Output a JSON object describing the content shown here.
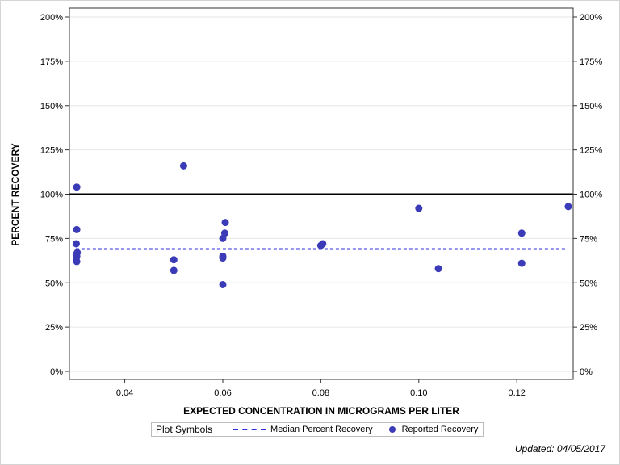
{
  "chart_data": {
    "type": "scatter",
    "xlabel": "EXPECTED CONCENTRATION IN MICROGRAMS PER LITER",
    "ylabel": "PERCENT RECOVERY",
    "xlim": [
      0.0287,
      0.1315
    ],
    "ylim": [
      0,
      200
    ],
    "x_ticks": [
      0.04,
      0.06,
      0.08,
      0.1,
      0.12
    ],
    "x_tick_labels": [
      "0.04",
      "0.06",
      "0.08",
      "0.10",
      "0.12"
    ],
    "y_ticks": [
      0,
      25,
      50,
      75,
      100,
      125,
      150,
      175,
      200
    ],
    "y_tick_labels": [
      "0%",
      "25%",
      "50%",
      "75%",
      "100%",
      "125%",
      "150%",
      "175%",
      "200%"
    ],
    "grid": true,
    "legend_position": "bottom",
    "reference_line": {
      "y": 100,
      "color": "#000000"
    },
    "series": [
      {
        "name": "Median Percent Recovery",
        "style": "dashed-line",
        "color": "#2f2fe0",
        "y": 69,
        "x_range": [
          0.03,
          0.1305
        ]
      },
      {
        "name": "Reported Recovery",
        "style": "marker",
        "color": "#3b3bb8",
        "points": [
          {
            "x": 0.0302,
            "y": 104
          },
          {
            "x": 0.0302,
            "y": 80
          },
          {
            "x": 0.0301,
            "y": 72
          },
          {
            "x": 0.0303,
            "y": 67
          },
          {
            "x": 0.0301,
            "y": 66
          },
          {
            "x": 0.0302,
            "y": 65
          },
          {
            "x": 0.0301,
            "y": 64
          },
          {
            "x": 0.0302,
            "y": 62
          },
          {
            "x": 0.05,
            "y": 63
          },
          {
            "x": 0.05,
            "y": 57
          },
          {
            "x": 0.052,
            "y": 116
          },
          {
            "x": 0.0605,
            "y": 84
          },
          {
            "x": 0.0604,
            "y": 78
          },
          {
            "x": 0.06,
            "y": 75
          },
          {
            "x": 0.06,
            "y": 65
          },
          {
            "x": 0.06,
            "y": 64
          },
          {
            "x": 0.06,
            "y": 49
          },
          {
            "x": 0.08,
            "y": 71
          },
          {
            "x": 0.0804,
            "y": 72
          },
          {
            "x": 0.1,
            "y": 92
          },
          {
            "x": 0.104,
            "y": 58
          },
          {
            "x": 0.121,
            "y": 78
          },
          {
            "x": 0.121,
            "y": 61
          },
          {
            "x": 0.1305,
            "y": 93
          }
        ]
      }
    ]
  },
  "legend": {
    "title": "Plot Symbols",
    "median_label": "Median Percent Recovery",
    "reported_label": "Reported Recovery"
  },
  "footer": {
    "updated": "Updated: 04/05/2017"
  }
}
